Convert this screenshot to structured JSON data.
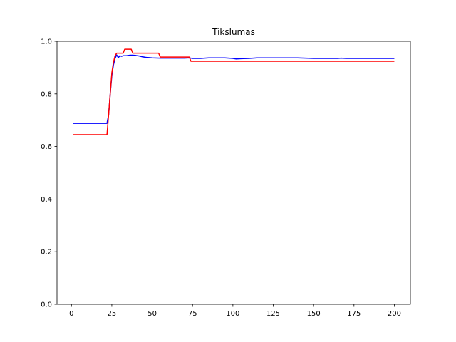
{
  "chart_data": {
    "type": "line",
    "title": "Tikslumas",
    "xlabel": "",
    "ylabel": "",
    "xlim": [
      -8.95,
      209.95
    ],
    "ylim": [
      0.0,
      1.0
    ],
    "xticks": [
      0,
      25,
      50,
      75,
      100,
      125,
      150,
      175,
      200
    ],
    "yticks": [
      0.0,
      0.2,
      0.4,
      0.6,
      0.8,
      1.0
    ],
    "xtick_labels": [
      "0",
      "25",
      "50",
      "75",
      "100",
      "125",
      "150",
      "175",
      "200"
    ],
    "ytick_labels": [
      "0.0",
      "0.2",
      "0.4",
      "0.6",
      "0.8",
      "1.0"
    ],
    "grid": false,
    "legend": null,
    "series": [
      {
        "color": "#0000ff",
        "x": [
          1,
          22,
          23,
          24,
          25,
          26,
          27,
          28,
          29,
          30,
          31,
          32,
          34,
          36,
          38,
          40,
          42,
          44,
          46,
          48,
          50,
          55,
          60,
          65,
          70,
          73,
          75,
          80,
          85,
          90,
          95,
          100,
          102,
          105,
          110,
          115,
          120,
          125,
          130,
          135,
          140,
          145,
          150,
          155,
          160,
          165,
          167,
          170,
          175,
          180,
          185,
          190,
          195,
          200
        ],
        "y": [
          0.688,
          0.688,
          0.72,
          0.8,
          0.87,
          0.91,
          0.935,
          0.948,
          0.938,
          0.945,
          0.943,
          0.945,
          0.945,
          0.947,
          0.947,
          0.946,
          0.944,
          0.941,
          0.939,
          0.938,
          0.937,
          0.936,
          0.936,
          0.936,
          0.936,
          0.937,
          0.935,
          0.935,
          0.937,
          0.937,
          0.937,
          0.935,
          0.933,
          0.934,
          0.935,
          0.937,
          0.937,
          0.937,
          0.937,
          0.937,
          0.937,
          0.936,
          0.935,
          0.935,
          0.935,
          0.935,
          0.936,
          0.935,
          0.935,
          0.935,
          0.935,
          0.935,
          0.935,
          0.935
        ]
      },
      {
        "color": "#ff0000",
        "x": [
          1,
          22,
          23,
          24,
          25,
          26,
          27,
          28,
          29,
          30,
          31,
          32,
          33,
          34,
          36,
          37,
          38,
          40,
          45,
          50,
          54,
          55,
          60,
          65,
          70,
          73,
          74,
          75,
          80,
          90,
          100,
          120,
          150,
          175,
          200
        ],
        "y": [
          0.645,
          0.645,
          0.72,
          0.8,
          0.88,
          0.92,
          0.945,
          0.955,
          0.955,
          0.955,
          0.955,
          0.955,
          0.97,
          0.97,
          0.97,
          0.97,
          0.955,
          0.955,
          0.955,
          0.955,
          0.955,
          0.94,
          0.94,
          0.94,
          0.94,
          0.94,
          0.924,
          0.924,
          0.924,
          0.924,
          0.924,
          0.924,
          0.924,
          0.924,
          0.924
        ]
      }
    ]
  }
}
